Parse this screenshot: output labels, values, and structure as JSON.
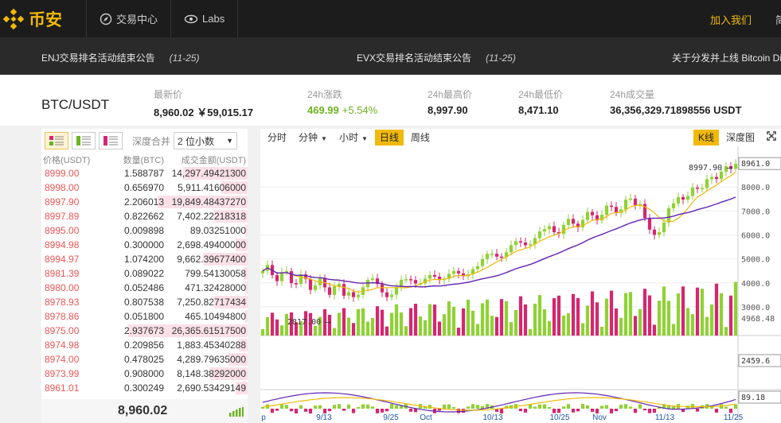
{
  "header": {
    "brand": "币安",
    "nav": [
      {
        "label": "交易中心",
        "icon": "compass-icon"
      },
      {
        "label": "Labs",
        "icon": "eye-icon"
      }
    ],
    "join": "加入我们",
    "lang": "简"
  },
  "announcements": [
    {
      "text": "ENJ交易排名活动结束公告",
      "date": "(11-25)"
    },
    {
      "text": "EVX交易排名活动结束公告",
      "date": "(11-25)"
    },
    {
      "text": "关于分发并上线 Bitcoin Di",
      "date": ""
    }
  ],
  "ticker": {
    "pair": "BTC/USDT",
    "last_label": "最新价",
    "last_value": "8,960.02",
    "last_cny": "￥59,015.17",
    "change_label": "24h涨跌",
    "change_value": "469.99",
    "change_pct": "+5.54%",
    "high_label": "24h最高价",
    "high_value": "8,997.90",
    "low_label": "24h最低价",
    "low_value": "8,471.10",
    "vol_label": "24h成交量",
    "vol_value": "36,356,329.71898556 USDT"
  },
  "orderbook": {
    "merge_label": "深度合并",
    "merge_value": "2 位小数",
    "headers": [
      "价格(USDT)",
      "数量(BTC)",
      "成交金额(USDT)"
    ],
    "rows": [
      {
        "price": "8999.00",
        "amount": "1.588787",
        "total": "14,297.49421300"
      },
      {
        "price": "8998.00",
        "amount": "0.656970",
        "total": "5,911.41606000"
      },
      {
        "price": "8997.90",
        "amount": "2.206013",
        "total": "19,849.48437270"
      },
      {
        "price": "8997.89",
        "amount": "0.822662",
        "total": "7,402.22218318"
      },
      {
        "price": "8995.00",
        "amount": "0.009898",
        "total": "89.03251000"
      },
      {
        "price": "8994.98",
        "amount": "0.300000",
        "total": "2,698.49400000"
      },
      {
        "price": "8994.97",
        "amount": "1.074200",
        "total": "9,662.39677400"
      },
      {
        "price": "8981.39",
        "amount": "0.089022",
        "total": "799.54130058"
      },
      {
        "price": "8980.00",
        "amount": "0.052486",
        "total": "471.32428000"
      },
      {
        "price": "8978.93",
        "amount": "0.807538",
        "total": "7,250.82717434"
      },
      {
        "price": "8978.86",
        "amount": "0.051800",
        "total": "465.10494800"
      },
      {
        "price": "8975.00",
        "amount": "2.937673",
        "total": "26,365.61517500"
      },
      {
        "price": "8974.98",
        "amount": "0.209856",
        "total": "1,883.45340288"
      },
      {
        "price": "8974.00",
        "amount": "0.478025",
        "total": "4,289.79635000"
      },
      {
        "price": "8973.99",
        "amount": "0.908000",
        "total": "8,148.38292000"
      },
      {
        "price": "8961.01",
        "amount": "0.300249",
        "total": "2,690.53429149"
      }
    ],
    "last_price": "8,960.02"
  },
  "chart_toolbar": {
    "left": [
      {
        "label": "分时",
        "dropdown": false,
        "active": false
      },
      {
        "label": "分钟",
        "dropdown": true,
        "active": false
      },
      {
        "label": "小时",
        "dropdown": true,
        "active": false
      },
      {
        "label": "日线",
        "dropdown": false,
        "active": true
      },
      {
        "label": "周线",
        "dropdown": false,
        "active": false
      }
    ],
    "kline": "K线",
    "depth": "深度图"
  },
  "colors": {
    "up": "#8fd234",
    "down": "#d6266f",
    "ma1": "#f0b90b",
    "ma2": "#6422b4",
    "accent": "#f0b90b"
  },
  "chart_data": {
    "type": "candlestick",
    "price_axis": [
      8000,
      7000,
      6000,
      5000,
      4000,
      3000
    ],
    "price_range": [
      2400,
      9300
    ],
    "last_label": "8961.0",
    "max_marker": "8997.90",
    "min_marker": "2817.00",
    "volume_axis": [
      "4968.48",
      "2459.6"
    ],
    "indicator_value": "89.18",
    "x_labels": [
      "p",
      "9/13",
      "9/25",
      "Oct",
      "10/13",
      "10/25",
      "Nov",
      "11/13",
      "11/25"
    ]
  }
}
